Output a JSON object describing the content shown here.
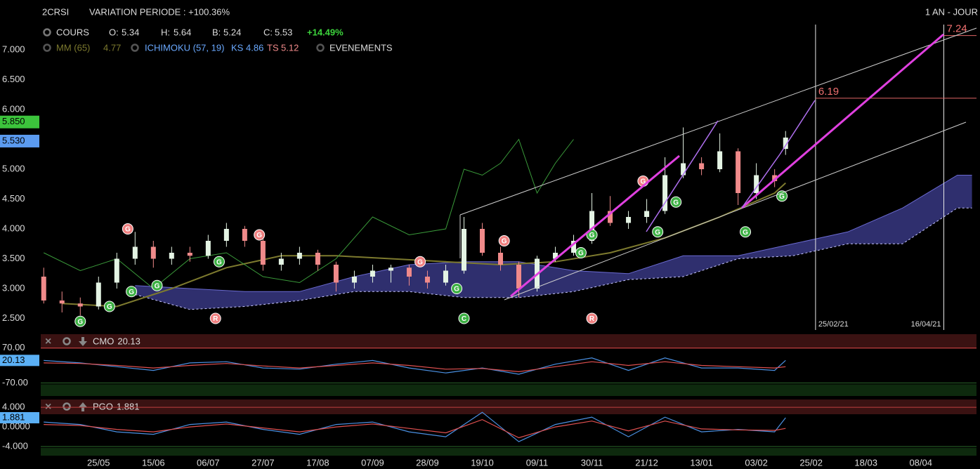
{
  "chart_data": {
    "type": "candlestick",
    "title": "2CRSI",
    "subtitle": "VARIATION PERIODE : +100.36%",
    "period": "1 AN - JOUR",
    "legend": {
      "cours": "COURS",
      "open_label": "O:",
      "open": 5.34,
      "high_label": "H:",
      "high": 5.64,
      "low_label": "B:",
      "low": 5.24,
      "close_label": "C:",
      "close": 5.53,
      "change": "+14.49%",
      "mm": "MM (65)",
      "mm_value": 4.77,
      "ichimoku": "ICHIMOKU (57, 19)",
      "ks_label": "KS",
      "ks": 4.86,
      "ts_label": "TS",
      "ts": 5.12,
      "events": "EVENEMENTS"
    },
    "x": [
      0,
      5,
      10,
      15,
      20,
      25,
      30,
      35,
      40,
      45,
      50,
      55,
      60,
      65,
      70,
      75,
      80,
      85,
      90,
      95,
      100,
      105,
      110,
      115,
      120,
      125,
      130,
      135,
      140,
      145,
      150,
      155,
      160,
      165,
      170,
      175,
      180,
      185,
      190,
      195,
      200,
      203
    ],
    "open": [
      3.2,
      2.8,
      2.75,
      2.7,
      3.1,
      3.5,
      3.7,
      3.5,
      3.6,
      3.55,
      3.8,
      4.0,
      3.8,
      3.4,
      3.5,
      3.6,
      3.4,
      3.1,
      3.2,
      3.3,
      3.35,
      3.2,
      3.1,
      3.3,
      4.0,
      3.6,
      3.4,
      3.0,
      3.5,
      3.6,
      3.8,
      4.3,
      4.1,
      4.2,
      4.3,
      4.9,
      5.1,
      5.0,
      5.3,
      4.6,
      4.9,
      5.34
    ],
    "high": [
      3.35,
      2.95,
      2.85,
      3.2,
      3.6,
      3.95,
      3.8,
      3.7,
      3.7,
      3.9,
      4.1,
      4.05,
      3.85,
      3.6,
      3.7,
      3.65,
      3.45,
      3.3,
      3.4,
      3.4,
      3.4,
      3.3,
      3.4,
      4.2,
      4.1,
      3.7,
      3.45,
      3.55,
      3.7,
      3.9,
      4.6,
      4.55,
      4.3,
      4.5,
      5.2,
      5.7,
      5.2,
      5.6,
      5.35,
      5.1,
      5.0,
      5.64
    ],
    "low": [
      2.75,
      2.6,
      2.55,
      2.65,
      3.0,
      3.4,
      3.35,
      3.4,
      3.45,
      3.5,
      3.7,
      3.7,
      3.3,
      3.3,
      3.4,
      3.3,
      2.95,
      3.0,
      3.1,
      3.1,
      3.05,
      3.0,
      3.05,
      3.25,
      3.55,
      3.3,
      2.85,
      2.95,
      3.45,
      3.55,
      3.75,
      4.05,
      4.0,
      4.1,
      4.25,
      4.85,
      4.9,
      4.95,
      4.4,
      4.5,
      4.7,
      5.24
    ],
    "close": [
      2.8,
      2.75,
      2.7,
      3.1,
      3.5,
      3.7,
      3.5,
      3.6,
      3.55,
      3.8,
      4.0,
      3.8,
      3.4,
      3.5,
      3.6,
      3.4,
      3.1,
      3.2,
      3.3,
      3.35,
      3.2,
      3.1,
      3.3,
      4.0,
      3.6,
      3.4,
      3.0,
      3.5,
      3.6,
      3.8,
      4.3,
      4.1,
      4.2,
      4.3,
      4.9,
      5.1,
      5.0,
      5.3,
      4.6,
      4.9,
      4.8,
      5.53
    ],
    "up_color": "#e4f4e4",
    "down_color": "#f08a8a",
    "xlim": [
      -1.2,
      256.2
    ],
    "xticks": [
      {
        "value": 15,
        "label": "25/05"
      },
      {
        "value": 30,
        "label": "15/06"
      },
      {
        "value": 45,
        "label": "06/07"
      },
      {
        "value": 60,
        "label": "27/07"
      },
      {
        "value": 75,
        "label": "17/08"
      },
      {
        "value": 90,
        "label": "07/09"
      },
      {
        "value": 105,
        "label": "28/09"
      },
      {
        "value": 120,
        "label": "19/10"
      },
      {
        "value": 135,
        "label": "09/11"
      },
      {
        "value": 150,
        "label": "30/11"
      },
      {
        "value": 165,
        "label": "21/12"
      },
      {
        "value": 180,
        "label": "13/01"
      },
      {
        "value": 195,
        "label": "03/02"
      },
      {
        "value": 210,
        "label": "25/02"
      },
      {
        "value": 225,
        "label": "18/03"
      },
      {
        "value": 240,
        "label": "08/04"
      }
    ],
    "ylim": [
      2.3,
      7.4
    ],
    "yticks": [
      {
        "value": 2.5,
        "label": "2.500"
      },
      {
        "value": 3,
        "label": "3.000"
      },
      {
        "value": 3.5,
        "label": "3.500"
      },
      {
        "value": 4,
        "label": "4.000"
      },
      {
        "value": 4.5,
        "label": "4.500"
      },
      {
        "value": 5,
        "label": "5.000"
      },
      {
        "value": 6,
        "label": "6.000"
      },
      {
        "value": 6.5,
        "label": "6.500"
      },
      {
        "value": 7,
        "label": "7.000"
      }
    ],
    "price_badges": [
      {
        "value": 5.85,
        "label": "5.850",
        "color": "#3cc43c"
      },
      {
        "value": 5.53,
        "label": "5.530",
        "color": "#5b9bf0"
      }
    ],
    "cloud": {
      "color": "#34347a",
      "x": [
        25,
        40,
        55,
        70,
        85,
        100,
        115,
        130,
        145,
        160,
        175,
        190,
        205,
        220,
        235,
        250,
        254
      ],
      "upper": [
        3.05,
        3.0,
        2.95,
        2.95,
        3.2,
        3.4,
        3.45,
        3.45,
        3.3,
        3.25,
        3.55,
        3.55,
        3.75,
        3.95,
        4.35,
        4.9,
        4.9
      ],
      "lower": [
        2.9,
        2.65,
        2.7,
        2.8,
        2.95,
        2.95,
        2.85,
        2.85,
        2.95,
        3.15,
        3.2,
        3.5,
        3.55,
        3.75,
        3.75,
        4.35,
        4.35
      ]
    },
    "overlays": [
      {
        "color": "#7d7a2e",
        "x": [
          5,
          20,
          35,
          50,
          65,
          80,
          95,
          110,
          125,
          140,
          155,
          170,
          185,
          200,
          203
        ],
        "values": [
          2.75,
          2.7,
          3.0,
          3.35,
          3.55,
          3.55,
          3.5,
          3.45,
          3.4,
          3.45,
          3.6,
          3.85,
          4.2,
          4.6,
          4.77
        ]
      },
      {
        "color": "#3a9a3a",
        "x": [
          0,
          10,
          20,
          30,
          40,
          50,
          60,
          70,
          80,
          90,
          100,
          110,
          115,
          120,
          125,
          130,
          135,
          140,
          145
        ],
        "values": [
          3.6,
          3.3,
          3.5,
          3.0,
          3.5,
          3.6,
          3.2,
          3.1,
          3.5,
          4.2,
          3.9,
          4.0,
          5.0,
          4.9,
          5.1,
          5.5,
          4.6,
          5.1,
          5.5
        ]
      }
    ],
    "events": [
      {
        "label": "G",
        "x": 10,
        "y": 2.45,
        "color": "#3cb043"
      },
      {
        "label": "G",
        "x": 18,
        "y": 2.7,
        "color": "#3cb043"
      },
      {
        "label": "G",
        "x": 24,
        "y": 2.95,
        "color": "#3cb043"
      },
      {
        "label": "G",
        "x": 31,
        "y": 3.05,
        "color": "#3cb043"
      },
      {
        "label": "G",
        "x": 48,
        "y": 3.45,
        "color": "#3cb043"
      },
      {
        "label": "G",
        "x": 113,
        "y": 3.0,
        "color": "#3cb043"
      },
      {
        "label": "G",
        "x": 147,
        "y": 3.6,
        "color": "#3cb043"
      },
      {
        "label": "G",
        "x": 150,
        "y": 3.9,
        "color": "#3cb043"
      },
      {
        "label": "G",
        "x": 168,
        "y": 3.95,
        "color": "#3cb043"
      },
      {
        "label": "G",
        "x": 173,
        "y": 4.45,
        "color": "#3cb043"
      },
      {
        "label": "G",
        "x": 192,
        "y": 3.95,
        "color": "#3cb043"
      },
      {
        "label": "G",
        "x": 202,
        "y": 4.55,
        "color": "#3cb043"
      },
      {
        "label": "G",
        "x": 23,
        "y": 4.0,
        "color": "#f08080"
      },
      {
        "label": "G",
        "x": 59,
        "y": 3.9,
        "color": "#f08080"
      },
      {
        "label": "G",
        "x": 103,
        "y": 3.45,
        "color": "#f08080"
      },
      {
        "label": "G",
        "x": 126,
        "y": 3.8,
        "color": "#f08080"
      },
      {
        "label": "G",
        "x": 164,
        "y": 4.8,
        "color": "#f08080"
      },
      {
        "label": "R",
        "x": 47,
        "y": 2.5,
        "color": "#f08080"
      },
      {
        "label": "C",
        "x": 115,
        "y": 2.5,
        "color": "#3cb043"
      },
      {
        "label": "R",
        "x": 150,
        "y": 2.5,
        "color": "#f08080"
      }
    ],
    "vlines": [
      {
        "value": 211.2,
        "label": "25/02/21"
      },
      {
        "value": 246.3,
        "label": "16/04/21"
      }
    ],
    "hlines": [
      {
        "value": 6.19
      },
      {
        "value": 7.24
      }
    ],
    "indicators": [
      {
        "name": "CMO",
        "current": 20.13,
        "ylim": [
          -125,
          125
        ],
        "yticks": [
          {
            "value": 70,
            "label": "70.00"
          },
          {
            "value": -70,
            "label": "-70.00"
          }
        ],
        "x": [
          0,
          10,
          20,
          30,
          40,
          50,
          60,
          70,
          80,
          90,
          100,
          110,
          120,
          130,
          140,
          150,
          160,
          170,
          180,
          190,
          200,
          203
        ],
        "series": [
          {
            "color": "#4a90e2",
            "values": [
              20,
              10,
              -5,
              -20,
              10,
              15,
              -10,
              -15,
              5,
              20,
              -10,
              -30,
              -10,
              -35,
              5,
              30,
              -20,
              30,
              -10,
              -10,
              -20,
              20.13
            ]
          },
          {
            "color": "#e05050",
            "values": [
              10,
              8,
              0,
              -10,
              0,
              8,
              -2,
              -10,
              0,
              10,
              0,
              -15,
              -12,
              -25,
              -5,
              15,
              0,
              15,
              0,
              -5,
              -10,
              -5
            ]
          }
        ]
      },
      {
        "name": "PGO",
        "current": 1.881,
        "ylim": [
          -6,
          5.6
        ],
        "yticks": [
          {
            "value": 4,
            "label": "4.000"
          },
          {
            "value": 0,
            "label": "0.0000"
          },
          {
            "value": -4,
            "label": "-4.000"
          }
        ],
        "x": [
          0,
          10,
          20,
          30,
          40,
          50,
          60,
          70,
          80,
          90,
          100,
          110,
          120,
          130,
          140,
          150,
          160,
          170,
          180,
          190,
          200,
          203
        ],
        "series": [
          {
            "color": "#4a90e2",
            "values": [
              1,
              0.5,
              -1,
              -1.5,
              0.5,
              1,
              -0.5,
              -1.5,
              0.5,
              1,
              -1,
              -2,
              3,
              -3,
              0.5,
              2,
              -2,
              2,
              -1,
              -0.5,
              -1,
              1.881
            ]
          },
          {
            "color": "#e05050",
            "values": [
              0.5,
              0.3,
              -0.5,
              -1,
              0,
              0.6,
              -0.2,
              -1,
              0,
              0.6,
              -0.3,
              -1.2,
              1.5,
              -2.2,
              0,
              1.2,
              -0.8,
              1.2,
              -0.4,
              -0.6,
              -0.7,
              -0.3
            ]
          }
        ]
      }
    ]
  }
}
